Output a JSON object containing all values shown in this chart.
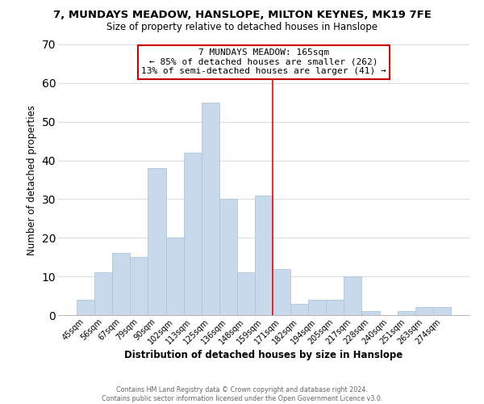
{
  "title": "7, MUNDAYS MEADOW, HANSLOPE, MILTON KEYNES, MK19 7FE",
  "subtitle": "Size of property relative to detached houses in Hanslope",
  "xlabel": "Distribution of detached houses by size in Hanslope",
  "ylabel": "Number of detached properties",
  "bar_labels": [
    "45sqm",
    "56sqm",
    "67sqm",
    "79sqm",
    "90sqm",
    "102sqm",
    "113sqm",
    "125sqm",
    "136sqm",
    "148sqm",
    "159sqm",
    "171sqm",
    "182sqm",
    "194sqm",
    "205sqm",
    "217sqm",
    "228sqm",
    "240sqm",
    "251sqm",
    "263sqm",
    "274sqm"
  ],
  "bar_values": [
    4,
    11,
    16,
    15,
    38,
    20,
    42,
    55,
    30,
    11,
    31,
    12,
    3,
    4,
    4,
    10,
    1,
    0,
    1,
    2,
    2
  ],
  "bar_color": "#c9d9ec",
  "bar_edge_color": "#aec6de",
  "ylim": [
    0,
    70
  ],
  "yticks": [
    0,
    10,
    20,
    30,
    40,
    50,
    60,
    70
  ],
  "red_line_x": 10.5,
  "annotation_title": "7 MUNDAYS MEADOW: 165sqm",
  "annotation_line1": "← 85% of detached houses are smaller (262)",
  "annotation_line2": "13% of semi-detached houses are larger (41) →",
  "annotation_box_color": "#ffffff",
  "annotation_box_edge": "#cc0000",
  "footer_line1": "Contains HM Land Registry data © Crown copyright and database right 2024.",
  "footer_line2": "Contains public sector information licensed under the Open Government Licence v3.0.",
  "background_color": "#ffffff",
  "grid_color": "#dddddd"
}
